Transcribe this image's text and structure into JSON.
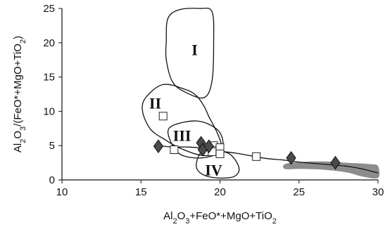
{
  "chart_data": {
    "type": "scatter",
    "xlabel_parts": [
      {
        "t": "Al",
        "sub": false
      },
      {
        "t": "2",
        "sub": true
      },
      {
        "t": "O",
        "sub": false
      },
      {
        "t": "3",
        "sub": true
      },
      {
        "t": "+FeO*+MgO+TiO",
        "sub": false
      },
      {
        "t": "2",
        "sub": true
      }
    ],
    "ylabel_parts": [
      {
        "t": "Al",
        "sub": false
      },
      {
        "t": "2",
        "sub": true
      },
      {
        "t": "O",
        "sub": false
      },
      {
        "t": "3",
        "sub": true
      },
      {
        "t": "/(FeO*+MgO+TiO",
        "sub": false
      },
      {
        "t": "2",
        "sub": true
      },
      {
        "t": ")",
        "sub": false
      }
    ],
    "xlim": [
      10,
      30
    ],
    "ylim": [
      0,
      25
    ],
    "xticks": [
      10,
      15,
      20,
      25,
      30
    ],
    "yticks": [
      0,
      5,
      10,
      15,
      20,
      25
    ],
    "xtick_labels": [
      "10",
      "15",
      "20",
      "25",
      "30"
    ],
    "ytick_labels": [
      "0",
      "5",
      "10",
      "15",
      "20",
      "25"
    ],
    "grid": false,
    "regions": [
      {
        "label": "I",
        "label_at": [
          18.4,
          18.7
        ],
        "outline": [
          [
            16.6,
            20.2
          ],
          [
            16.7,
            23.5
          ],
          [
            17.4,
            24.8
          ],
          [
            18.7,
            25.0
          ],
          [
            19.5,
            24.5
          ],
          [
            19.6,
            20.0
          ],
          [
            19.5,
            14.5
          ],
          [
            19.0,
            12.0
          ],
          [
            17.8,
            12.8
          ],
          [
            17.0,
            14.3
          ],
          [
            16.6,
            17.5
          ]
        ]
      },
      {
        "label": "II",
        "label_at": [
          15.9,
          10.9
        ],
        "outline": [
          [
            15.1,
            10.0
          ],
          [
            15.3,
            12.0
          ],
          [
            16.4,
            13.9
          ],
          [
            17.8,
            13.2
          ],
          [
            18.5,
            12.3
          ],
          [
            19.0,
            10.7
          ],
          [
            19.3,
            9.2
          ],
          [
            19.8,
            7.0
          ],
          [
            20.1,
            5.0
          ],
          [
            19.9,
            3.8
          ],
          [
            18.8,
            3.6
          ],
          [
            17.5,
            4.6
          ],
          [
            16.5,
            5.9
          ],
          [
            15.6,
            7.4
          ]
        ]
      },
      {
        "label": "III",
        "label_at": [
          17.6,
          6.2
        ],
        "outline": [
          [
            16.8,
            7.6
          ],
          [
            18.5,
            8.6
          ],
          [
            19.8,
            7.4
          ],
          [
            20.2,
            5.4
          ],
          [
            19.9,
            3.9
          ],
          [
            18.8,
            3.2
          ],
          [
            17.6,
            3.6
          ],
          [
            17.0,
            5.0
          ]
        ]
      },
      {
        "label": "IV",
        "label_at": [
          19.6,
          1.2
        ],
        "outline": [
          [
            18.8,
            4.0
          ],
          [
            18.5,
            2.0
          ],
          [
            18.9,
            0.8
          ],
          [
            19.8,
            0.3
          ],
          [
            20.9,
            0.5
          ],
          [
            21.2,
            1.8
          ],
          [
            20.6,
            3.8
          ],
          [
            19.6,
            4.2
          ]
        ]
      }
    ],
    "trend_line": [
      [
        16.0,
        5.0
      ],
      [
        17.0,
        4.8
      ],
      [
        18.0,
        4.8
      ],
      [
        19.0,
        4.6
      ],
      [
        20.0,
        4.2
      ],
      [
        21.0,
        3.9
      ],
      [
        22.0,
        3.5
      ],
      [
        23.0,
        3.1
      ],
      [
        24.0,
        2.9
      ],
      [
        25.0,
        2.6
      ],
      [
        26.0,
        2.4
      ],
      [
        27.0,
        2.2
      ],
      [
        28.0,
        2.0
      ],
      [
        29.0,
        1.6
      ],
      [
        30.0,
        1.0
      ]
    ],
    "shaded_field": {
      "color": "#8c8c8c",
      "outline": [
        [
          24.1,
          2.3
        ],
        [
          25.0,
          2.6
        ],
        [
          26.5,
          2.7
        ],
        [
          28.0,
          2.5
        ],
        [
          29.5,
          2.3
        ],
        [
          30.0,
          2.0
        ],
        [
          30.0,
          0.3
        ],
        [
          29.0,
          0.5
        ],
        [
          28.0,
          1.1
        ],
        [
          26.5,
          1.5
        ],
        [
          25.0,
          1.6
        ],
        [
          24.1,
          1.6
        ]
      ]
    },
    "series": [
      {
        "marker": "square",
        "color": "#ffffff",
        "points": [
          [
            16.4,
            9.3
          ],
          [
            17.1,
            4.4
          ],
          [
            19.6,
            5.0
          ],
          [
            19.8,
            4.3
          ],
          [
            20.0,
            4.7
          ],
          [
            20.0,
            3.8
          ],
          [
            19.5,
            4.1
          ],
          [
            22.3,
            3.4
          ]
        ]
      },
      {
        "marker": "diamond",
        "color": "#4a4a4a",
        "points": [
          [
            16.1,
            4.9
          ],
          [
            18.8,
            5.4
          ],
          [
            18.9,
            4.4
          ],
          [
            19.3,
            4.9
          ],
          [
            24.5,
            3.2
          ],
          [
            27.3,
            2.5
          ]
        ]
      }
    ]
  }
}
